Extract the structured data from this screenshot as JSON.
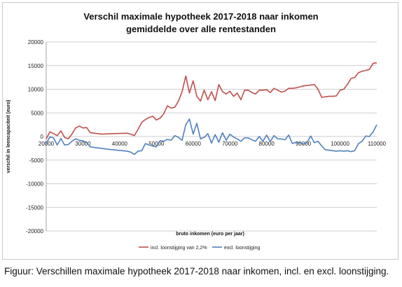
{
  "caption": "Figuur: Verschillen maximale hypotheek 2017-2018 naar inkomen, incl. en excl. loonstijging.",
  "chart_data": {
    "type": "line",
    "title": "Verschil maximale hypotheek 2017-2018 naar inkomen",
    "subtitle": "gemiddelde over alle rentestanden",
    "xlabel": "bruto inkomen (euro per jaar)",
    "ylabel": "verschil in leencapaciteit (euro)",
    "xlim": [
      20000,
      110000
    ],
    "ylim": [
      -20000,
      20000
    ],
    "x_ticks": [
      "20000",
      "30000",
      "40000",
      "50000",
      "60000",
      "70000",
      "80000",
      "90000",
      "100000",
      "110000"
    ],
    "y_ticks": [
      "20000",
      "15000",
      "10000",
      "5000",
      "0",
      "-5000",
      "-10000",
      "-15000",
      "-20000"
    ],
    "grid": "horizontal",
    "legend_position": "bottom",
    "series": [
      {
        "name": "incl. loonstijging van 2,2%",
        "color": "#c0504d",
        "x": [
          20000,
          21000,
          22000,
          23000,
          24000,
          25000,
          26000,
          27000,
          28000,
          29000,
          30000,
          31000,
          32000,
          35000,
          38000,
          42000,
          43000,
          44000,
          45000,
          46000,
          47000,
          48000,
          49000,
          50000,
          51000,
          52000,
          53000,
          54000,
          55000,
          56000,
          57000,
          58000,
          59000,
          60000,
          61000,
          62000,
          63000,
          64000,
          65000,
          66000,
          67000,
          68000,
          69000,
          70000,
          71000,
          72000,
          73000,
          74000,
          75000,
          76000,
          77000,
          78000,
          79000,
          80000,
          81000,
          82000,
          83000,
          84000,
          85000,
          86000,
          87000,
          88000,
          89000,
          90000,
          91000,
          92000,
          93000,
          94000,
          95000,
          96000,
          97000,
          98000,
          99000,
          100000,
          101000,
          102000,
          103000,
          104000,
          105000,
          106000,
          107000,
          108000,
          109000,
          110000
        ],
        "values": [
          -500,
          1000,
          600,
          200,
          1200,
          -200,
          -500,
          500,
          1800,
          2200,
          1800,
          1900,
          800,
          500,
          600,
          700,
          500,
          200,
          1500,
          3000,
          3600,
          4000,
          4300,
          3500,
          3900,
          4800,
          6500,
          6000,
          6200,
          7500,
          9500,
          12800,
          9200,
          11800,
          8500,
          7500,
          9800,
          7800,
          9500,
          7600,
          11000,
          9500,
          9000,
          9600,
          8500,
          9200,
          7800,
          9800,
          9800,
          9300,
          9000,
          9800,
          9800,
          9900,
          9300,
          10200,
          9800,
          9400,
          9600,
          10200,
          10200,
          10300,
          10500,
          10700,
          10800,
          10900,
          11000,
          10000,
          8300,
          8400,
          8500,
          8500,
          8600,
          9800,
          10000,
          11000,
          12300,
          12500,
          13500,
          13800,
          14000,
          14200,
          15500,
          15600
        ]
      },
      {
        "name": "excl. loonstijging",
        "color": "#4f81bd",
        "x": [
          20000,
          21000,
          22000,
          23000,
          24000,
          25000,
          26000,
          27000,
          28000,
          29000,
          30000,
          31000,
          32000,
          35000,
          38000,
          42000,
          43000,
          44000,
          45000,
          46000,
          47000,
          48000,
          49000,
          50000,
          51000,
          52000,
          53000,
          54000,
          55000,
          56000,
          57000,
          58000,
          59000,
          60000,
          61000,
          62000,
          63000,
          64000,
          65000,
          66000,
          67000,
          68000,
          69000,
          70000,
          71000,
          72000,
          73000,
          74000,
          75000,
          76000,
          77000,
          78000,
          79000,
          80000,
          81000,
          82000,
          83000,
          84000,
          85000,
          86000,
          87000,
          88000,
          89000,
          90000,
          91000,
          92000,
          93000,
          94000,
          95000,
          96000,
          97000,
          98000,
          99000,
          100000,
          101000,
          102000,
          103000,
          104000,
          105000,
          106000,
          107000,
          108000,
          109000,
          110000
        ],
        "values": [
          -1500,
          -100,
          -300,
          -1800,
          -400,
          -1800,
          -1700,
          -1000,
          -500,
          -800,
          -900,
          -1300,
          -2200,
          -2500,
          -2800,
          -3100,
          -3300,
          -3800,
          -3100,
          -3000,
          -1500,
          -1800,
          -2000,
          -2200,
          -900,
          -1000,
          -600,
          -800,
          200,
          -200,
          -800,
          2500,
          3700,
          500,
          2800,
          -500,
          -200,
          600,
          -1400,
          400,
          -1200,
          800,
          -800,
          500,
          -100,
          -500,
          -1000,
          -300,
          -300,
          -700,
          -1000,
          0,
          -1000,
          300,
          -1100,
          200,
          -500,
          -500,
          -700,
          300,
          -1500,
          -1200,
          -1300,
          -1600,
          -1300,
          100,
          -1300,
          -1000,
          -2000,
          -2800,
          -2900,
          -3000,
          -3100,
          -3000,
          -3100,
          -3000,
          -3200,
          -3000,
          -1500,
          -1000,
          100,
          0,
          1000,
          2500
        ]
      }
    ]
  }
}
